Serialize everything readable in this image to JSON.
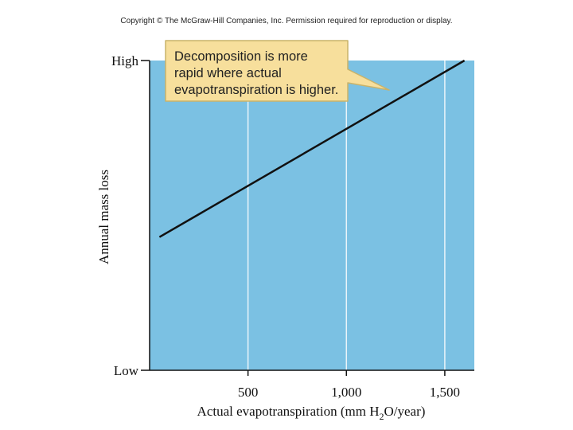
{
  "copyright": "Copyright © The McGraw-Hill Companies, Inc. Permission required for reproduction or display.",
  "colors": {
    "plot_background": "#7bc1e3",
    "gridline": "#e9f4fa",
    "line": "#111111",
    "callout_fill": "#f7df9c",
    "callout_border": "#c9b36a"
  },
  "chart_data": {
    "type": "line",
    "xlabel_prefix": "Actual evapotranspiration (mm H",
    "xlabel_sub": "2",
    "xlabel_suffix": "O/year)",
    "ylabel": "Annual mass loss",
    "xlim": [
      0,
      1650
    ],
    "x_ticks": [
      500,
      1000,
      1500
    ],
    "x_tick_labels": [
      "500",
      "1,000",
      "1,500"
    ],
    "y_tick_labels": {
      "low": "Low",
      "high": "High"
    },
    "ylim": [
      0,
      1
    ],
    "grid": "vertical",
    "series": [
      {
        "x": [
          50,
          1600
        ],
        "y": [
          0.43,
          1.0
        ]
      }
    ],
    "annotation": {
      "lines": [
        "Decomposition is more",
        "rapid where actual",
        "evapotranspiration is higher."
      ]
    }
  }
}
